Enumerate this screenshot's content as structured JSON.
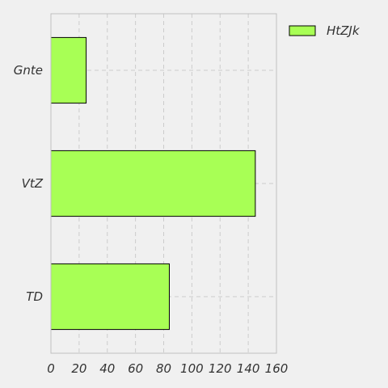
{
  "chart_data": {
    "type": "bar",
    "orientation": "horizontal",
    "categories": [
      "Gnte",
      "VtZ",
      "TD"
    ],
    "series": [
      {
        "name": "HtZJk",
        "values": [
          25,
          145,
          84
        ]
      }
    ],
    "xlim": [
      0,
      160
    ],
    "x_ticks": [
      "0",
      "20",
      "40",
      "60",
      "80",
      "100",
      "120",
      "140",
      "160"
    ],
    "grid": true,
    "legend_position": "top-right",
    "colors": {
      "bar_fill": "#a8ff55",
      "bar_stroke": "#000000",
      "background": "#f0f0f0",
      "grid": "#cccccc",
      "axis": "#bfbfbf"
    }
  }
}
